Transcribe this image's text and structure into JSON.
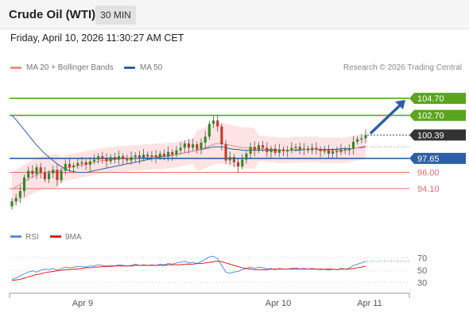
{
  "header": {
    "title": "Crude Oil (WTI)",
    "interval": "30 MIN"
  },
  "datetime": "Friday, April 10, 2026 11:30:27 AM CET",
  "legend": {
    "ma20": "MA 20 + Bollinger Bands",
    "ma50": "MA 50",
    "rsi": "RSI",
    "rsi_ma": "9MA"
  },
  "credit": "Research © 2026 Trading Central",
  "colors": {
    "up": "#2e8b20",
    "down": "#c0392b",
    "resistance": "#5aa51d",
    "support": "#e07070",
    "pivot": "#2f5ea8",
    "ma20": "#f08a8a",
    "ma50": "#2f5ea8",
    "band": "#fde3e3",
    "rsi": "#5b8fd9",
    "rsi_ma": "#e02020",
    "current": "#333333"
  },
  "chart_data": [
    {
      "type": "candlestick",
      "title": "Crude Oil (WTI)",
      "timeframe": "30 MIN",
      "x_ticks": [
        "Apr 9",
        "Apr 10",
        "Apr 11"
      ],
      "ylim": [
        90.0,
        107.5
      ],
      "levels": [
        {
          "label": "104.70",
          "value": 104.7,
          "kind": "resistance"
        },
        {
          "label": "102.70",
          "value": 102.7,
          "kind": "resistance"
        },
        {
          "label": "100.39",
          "value": 100.39,
          "kind": "current"
        },
        {
          "label": "97.65",
          "value": 97.65,
          "kind": "pivot"
        },
        {
          "label": "96.00",
          "value": 96.0,
          "kind": "support"
        },
        {
          "label": "94.10",
          "value": 94.1,
          "kind": "support"
        }
      ],
      "forecast": {
        "from": 100.39,
        "to": 104.7
      },
      "closes": [
        92.6,
        93.0,
        93.8,
        95.4,
        96.2,
        95.8,
        96.6,
        96.0,
        95.2,
        95.9,
        96.3,
        95.1,
        96.2,
        97.0,
        96.6,
        96.8,
        97.1,
        97.2,
        96.9,
        97.3,
        97.5,
        97.9,
        97.6,
        97.3,
        97.8,
        97.5,
        97.9,
        97.6,
        97.4,
        97.8,
        98.0,
        97.7,
        98.1,
        97.9,
        98.0,
        97.8,
        98.2,
        97.9,
        98.4,
        98.1,
        98.6,
        98.9,
        99.4,
        98.9,
        99.3,
        98.7,
        99.5,
        100.2,
        101.7,
        102.1,
        101.4,
        99.3,
        97.4,
        97.8,
        97.2,
        96.7,
        97.5,
        98.2,
        99.0,
        98.6,
        99.2,
        98.9,
        98.4,
        98.8,
        98.3,
        98.7,
        98.5,
        98.6,
        98.9,
        99.0,
        98.7,
        98.8,
        98.6,
        98.9,
        98.7,
        98.5,
        98.6,
        98.2,
        98.5,
        98.4,
        98.7,
        98.6,
        98.8,
        99.6,
        99.9,
        100.0,
        100.39
      ],
      "ma20": [
        94.0,
        94.3,
        94.6,
        94.9,
        95.2,
        95.5,
        95.7,
        95.9,
        96.0,
        96.1,
        96.1,
        96.2,
        96.3,
        96.5,
        96.6,
        96.7,
        96.8,
        96.9,
        97.0,
        97.1,
        97.2,
        97.3,
        97.4,
        97.4,
        97.5,
        97.5,
        97.6,
        97.6,
        97.6,
        97.7,
        97.7,
        97.7,
        97.8,
        97.8,
        97.8,
        97.9,
        97.9,
        97.9,
        98.0,
        98.0,
        98.1,
        98.2,
        98.3,
        98.4,
        98.5,
        98.6,
        98.7,
        98.9,
        99.1,
        99.3,
        99.4,
        99.4,
        99.3,
        99.2,
        99.1,
        99.0,
        98.9,
        98.9,
        98.9,
        98.8,
        98.8,
        98.8,
        98.7,
        98.7,
        98.7,
        98.6,
        98.6,
        98.6,
        98.6,
        98.7,
        98.7,
        98.7,
        98.7,
        98.7,
        98.7,
        98.6,
        98.6,
        98.6,
        98.6,
        98.6,
        98.6,
        98.6,
        98.7,
        98.8,
        98.9,
        99.0,
        99.1
      ],
      "ma50": [
        102.7,
        102.2,
        101.6,
        101.0,
        100.4,
        99.8,
        99.2,
        98.7,
        98.2,
        97.8,
        97.4,
        97.0,
        96.7,
        96.4,
        96.2,
        96.1,
        96.0,
        96.0,
        96.0,
        96.1,
        96.2,
        96.3,
        96.4,
        96.5,
        96.6,
        96.7,
        96.8,
        96.9,
        97.0,
        97.1,
        97.2,
        97.3,
        97.4,
        97.5,
        97.6,
        97.7,
        97.8,
        97.9,
        97.9,
        98.0,
        98.1,
        98.2,
        98.3,
        98.4,
        98.5,
        98.6,
        98.7,
        98.8,
        98.9,
        99.0,
        99.0,
        99.0,
        98.9,
        98.8,
        98.7,
        98.7,
        98.6,
        98.6,
        98.6,
        98.6,
        98.6,
        98.6,
        98.6,
        98.6,
        98.6,
        98.6,
        98.6,
        98.6,
        98.6,
        98.6,
        98.6,
        98.7,
        98.7,
        98.7,
        98.7,
        98.7,
        98.7,
        98.7,
        98.7,
        98.7,
        98.8,
        98.8,
        98.8,
        98.8,
        98.9,
        98.9,
        99.0
      ]
    },
    {
      "type": "line",
      "series_names": [
        "RSI",
        "9MA"
      ],
      "ylim": [
        20,
        80
      ],
      "y_ticks": [
        70,
        50,
        30
      ],
      "rsi": [
        35,
        37,
        41,
        44,
        47,
        49,
        47,
        50,
        52,
        51,
        53,
        50,
        53,
        55,
        54,
        55,
        56,
        56,
        55,
        57,
        57,
        59,
        58,
        57,
        58,
        57,
        59,
        58,
        57,
        58,
        60,
        58,
        59,
        58,
        59,
        58,
        60,
        59,
        61,
        60,
        62,
        63,
        65,
        62,
        63,
        61,
        64,
        68,
        72,
        73,
        69,
        58,
        47,
        45,
        47,
        48,
        51,
        53,
        55,
        53,
        55,
        54,
        52,
        53,
        51,
        53,
        52,
        52,
        53,
        54,
        52,
        53,
        52,
        53,
        52,
        51,
        52,
        50,
        52,
        51,
        53,
        52,
        53,
        58,
        60,
        62,
        65
      ],
      "ma9": [
        33,
        34,
        35,
        37,
        39,
        41,
        43,
        44,
        46,
        47,
        48,
        49,
        50,
        51,
        51,
        52,
        52,
        53,
        54,
        54,
        55,
        55,
        56,
        56,
        56,
        57,
        57,
        57,
        57,
        57,
        58,
        58,
        58,
        58,
        58,
        58,
        58,
        58,
        59,
        59,
        59,
        59,
        60,
        60,
        60,
        61,
        61,
        62,
        63,
        64,
        65,
        64,
        62,
        60,
        58,
        56,
        54,
        53,
        52,
        51,
        51,
        51,
        51,
        52,
        52,
        52,
        52,
        52,
        52,
        52,
        52,
        52,
        52,
        52,
        52,
        52,
        52,
        52,
        52,
        51,
        52,
        52,
        52,
        53,
        54,
        55,
        57
      ]
    }
  ]
}
